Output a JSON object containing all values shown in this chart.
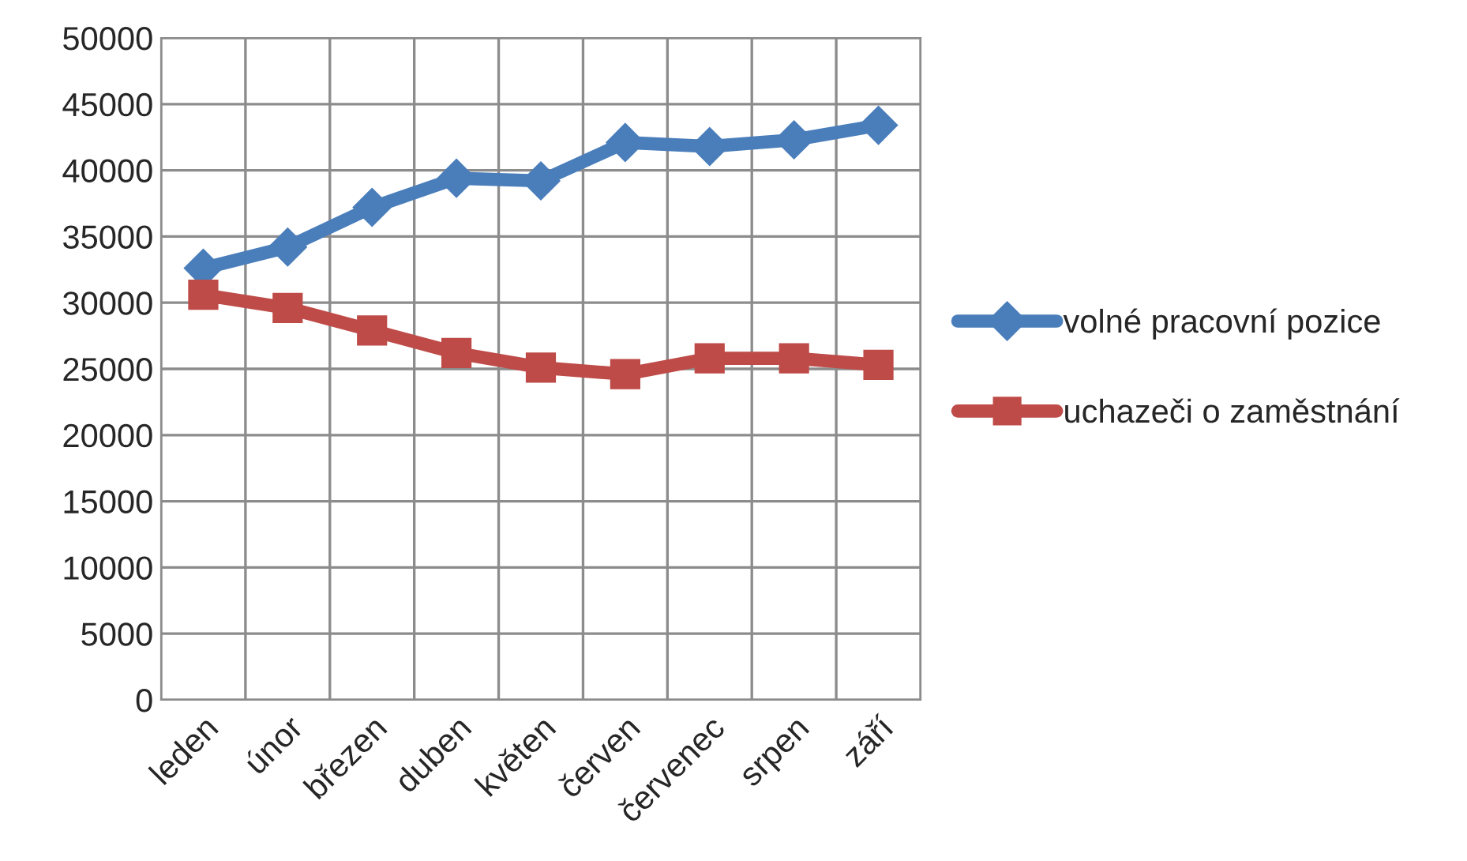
{
  "chart_data": {
    "type": "line",
    "categories": [
      "leden",
      "únor",
      "březen",
      "duben",
      "květen",
      "červen",
      "červenec",
      "srpen",
      "září"
    ],
    "series": [
      {
        "name": "volné pracovní pozice",
        "color": "#4a7ebb",
        "marker": "diamond",
        "values": [
          32600,
          34200,
          37200,
          39400,
          39200,
          42100,
          41800,
          42300,
          43400
        ]
      },
      {
        "name": "uchazeči o zaměstnání",
        "color": "#be4b48",
        "marker": "square",
        "values": [
          30600,
          29600,
          27900,
          26200,
          25100,
          24600,
          25800,
          25800,
          25300
        ]
      }
    ],
    "ylim": [
      0,
      50000
    ],
    "yticks": [
      0,
      5000,
      10000,
      15000,
      20000,
      25000,
      30000,
      35000,
      40000,
      45000,
      50000
    ],
    "grid": true,
    "legend": "right",
    "line_style": "solid"
  }
}
